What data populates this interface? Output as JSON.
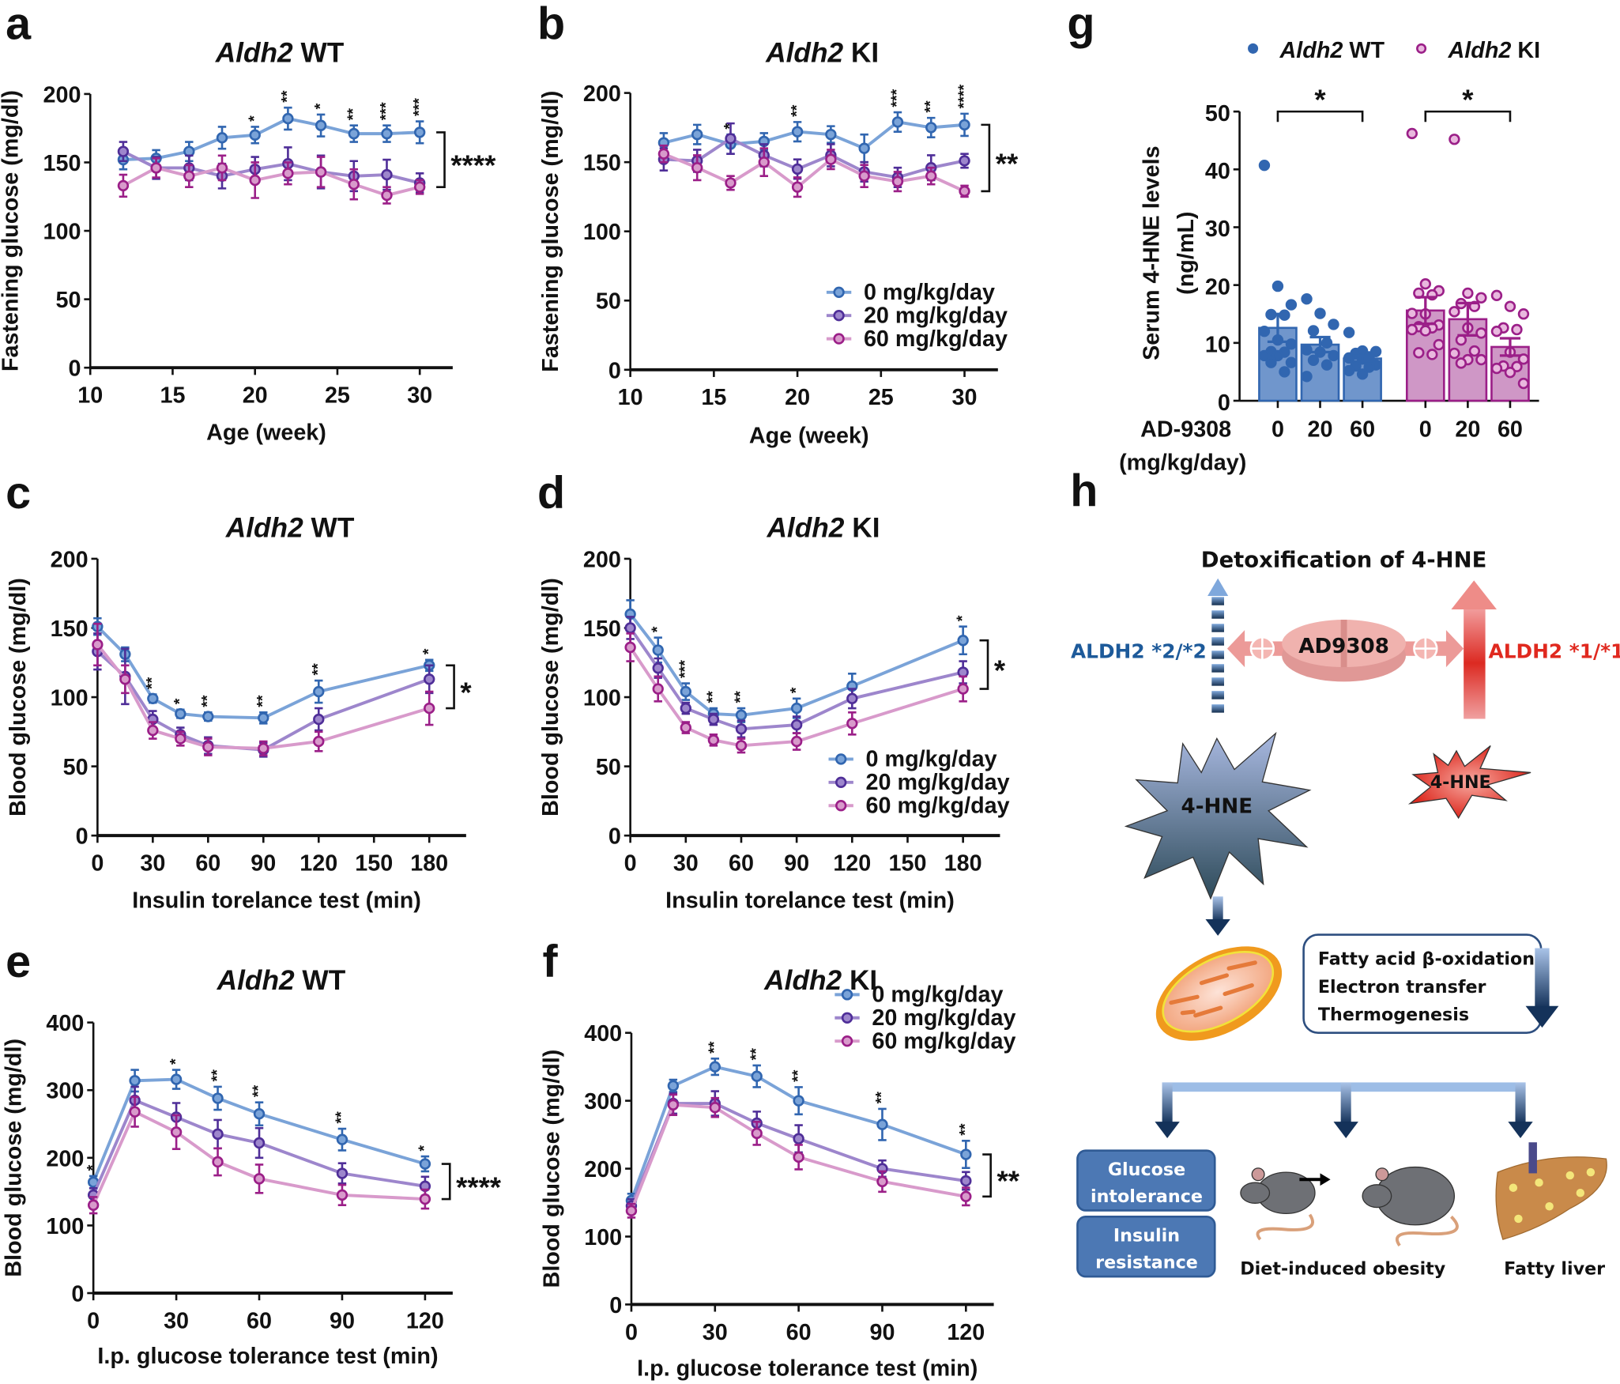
{
  "colors": {
    "dose0": "#3166b0",
    "dose0_line": "#7aa3d8",
    "dose20": "#4f2e98",
    "dose20_line": "#9d86cc",
    "dose60": "#9b1f88",
    "dose60_line": "#d89acb",
    "wt_bar": "#7096cc",
    "ki_bar": "#cf97c6"
  },
  "chart_data": [
    {
      "panel": "a",
      "type": "line",
      "title_gene": "Aldh2",
      "title_genotype": "WT",
      "ylabel": "Fastening glucose (mg/dl)",
      "xlabel": "Age (week)",
      "xlim": [
        10,
        32
      ],
      "ylim": [
        0,
        200
      ],
      "xticks": [
        10,
        15,
        20,
        25,
        30
      ],
      "yticks": [
        0,
        50,
        100,
        150,
        200
      ],
      "x": [
        12,
        14,
        16,
        18,
        20,
        22,
        24,
        26,
        28,
        30
      ],
      "series": [
        {
          "name": "0 mg/kg/day",
          "values": [
            152,
            153,
            158,
            168,
            170,
            182,
            177,
            171,
            171,
            172
          ],
          "sem": [
            7,
            6,
            7,
            8,
            6,
            8,
            8,
            6,
            6,
            8
          ]
        },
        {
          "name": "20 mg/kg/day",
          "values": [
            158,
            146,
            146,
            140,
            145,
            149,
            143,
            140,
            141,
            135
          ],
          "sem": [
            7,
            8,
            9,
            9,
            9,
            12,
            12,
            11,
            11,
            7
          ]
        },
        {
          "name": "60 mg/kg/day",
          "values": [
            133,
            146,
            140,
            146,
            137,
            142,
            143,
            134,
            126,
            132
          ],
          "sem": [
            8,
            7,
            8,
            9,
            13,
            8,
            11,
            11,
            6,
            5
          ]
        }
      ],
      "stars": [
        "",
        "",
        "",
        "",
        "*",
        "**",
        "*",
        "**",
        "***",
        "***"
      ],
      "bracket": "****",
      "legend": false
    },
    {
      "panel": "b",
      "type": "line",
      "title_gene": "Aldh2",
      "title_genotype": "KI",
      "ylabel": "Fastening glucose (mg/dl)",
      "xlabel": "Age (week)",
      "xlim": [
        10,
        32
      ],
      "ylim": [
        0,
        200
      ],
      "xticks": [
        10,
        15,
        20,
        25,
        30
      ],
      "yticks": [
        0,
        50,
        100,
        150,
        200
      ],
      "x": [
        12,
        14,
        16,
        18,
        20,
        22,
        24,
        26,
        28,
        30
      ],
      "series": [
        {
          "name": "0 mg/kg/day",
          "values": [
            164,
            170,
            163,
            165,
            172,
            170,
            160,
            179,
            175,
            177
          ],
          "sem": [
            7,
            7,
            7,
            6,
            7,
            6,
            10,
            7,
            7,
            8
          ]
        },
        {
          "name": "20 mg/kg/day",
          "values": [
            152,
            151,
            167,
            155,
            145,
            155,
            143,
            139,
            146,
            151
          ],
          "sem": [
            8,
            8,
            11,
            8,
            7,
            8,
            7,
            7,
            9,
            5
          ]
        },
        {
          "name": "60 mg/kg/day",
          "values": [
            156,
            146,
            135,
            150,
            132,
            152,
            140,
            136,
            140,
            129
          ],
          "sem": [
            6,
            9,
            5,
            10,
            7,
            7,
            8,
            7,
            6,
            4
          ]
        }
      ],
      "stars": [
        "",
        "",
        "*",
        "",
        "**",
        "",
        "",
        "***",
        "**",
        "****"
      ],
      "bracket": "**",
      "legend": true
    },
    {
      "panel": "c",
      "type": "line",
      "title_gene": "Aldh2",
      "title_genotype": "WT",
      "ylabel": "Blood glucose (mg/dl)",
      "xlabel": "Insulin torelance test (min)",
      "xlim": [
        0,
        200
      ],
      "ylim": [
        0,
        200
      ],
      "xticks": [
        0,
        30,
        60,
        90,
        120,
        150,
        180
      ],
      "yticks": [
        0,
        50,
        100,
        150,
        200
      ],
      "x": [
        0,
        15,
        30,
        45,
        60,
        90,
        120,
        180
      ],
      "series": [
        {
          "name": "0 mg/kg/day",
          "values": [
            151,
            131,
            99,
            88,
            86,
            85,
            104,
            123
          ],
          "sem": [
            6,
            5,
            3,
            3,
            3,
            4,
            8,
            4
          ]
        },
        {
          "name": "20 mg/kg/day",
          "values": [
            133,
            115,
            84,
            73,
            65,
            62,
            84,
            113
          ],
          "sem": [
            13,
            20,
            6,
            5,
            6,
            5,
            8,
            10
          ]
        },
        {
          "name": "60 mg/kg/day",
          "values": [
            138,
            113,
            76,
            70,
            64,
            63,
            68,
            92
          ],
          "sem": [
            15,
            10,
            6,
            5,
            6,
            5,
            7,
            12
          ]
        }
      ],
      "stars": [
        "",
        "",
        "**",
        "*",
        "**",
        "**",
        "**",
        "*"
      ],
      "bracket": "*",
      "legend": false
    },
    {
      "panel": "d",
      "type": "line",
      "title_gene": "Aldh2",
      "title_genotype": "KI",
      "ylabel": "Blood glucose (mg/dl)",
      "xlabel": "Insulin torelance test (min)",
      "xlim": [
        0,
        200
      ],
      "ylim": [
        0,
        200
      ],
      "xticks": [
        0,
        30,
        60,
        90,
        120,
        150,
        180
      ],
      "yticks": [
        0,
        50,
        100,
        150,
        200
      ],
      "x": [
        0,
        15,
        30,
        45,
        60,
        90,
        120,
        180
      ],
      "series": [
        {
          "name": "0 mg/kg/day",
          "values": [
            160,
            134,
            104,
            88,
            87,
            92,
            108,
            141
          ],
          "sem": [
            10,
            9,
            6,
            4,
            5,
            7,
            9,
            10
          ]
        },
        {
          "name": "20 mg/kg/day",
          "values": [
            150,
            121,
            92,
            84,
            77,
            80,
            99,
            118
          ],
          "sem": [
            8,
            7,
            4,
            4,
            6,
            6,
            7,
            8
          ]
        },
        {
          "name": "60 mg/kg/day",
          "values": [
            136,
            106,
            78,
            69,
            65,
            68,
            81,
            106
          ],
          "sem": [
            10,
            9,
            4,
            4,
            5,
            6,
            8,
            9
          ]
        }
      ],
      "stars": [
        "",
        "*",
        "***",
        "**",
        "**",
        "*",
        "",
        "*"
      ],
      "bracket": "*",
      "legend": true
    },
    {
      "panel": "e",
      "type": "line",
      "title_gene": "Aldh2",
      "title_genotype": "WT",
      "ylabel": "Blood glucose (mg/dl)",
      "xlabel": "I.p. glucose tolerance test (min)",
      "xlim": [
        0,
        130
      ],
      "ylim": [
        0,
        400
      ],
      "xticks": [
        0,
        30,
        60,
        90,
        120
      ],
      "yticks": [
        0,
        100,
        200,
        300,
        400
      ],
      "x": [
        0,
        15,
        30,
        45,
        60,
        90,
        120
      ],
      "series": [
        {
          "name": "0 mg/kg/day",
          "values": [
            164,
            314,
            316,
            288,
            265,
            227,
            191
          ],
          "sem": [
            9,
            16,
            14,
            17,
            17,
            16,
            11
          ]
        },
        {
          "name": "20 mg/kg/day",
          "values": [
            145,
            285,
            260,
            235,
            222,
            177,
            158
          ],
          "sem": [
            10,
            20,
            21,
            21,
            22,
            15,
            14
          ]
        },
        {
          "name": "60 mg/kg/day",
          "values": [
            130,
            268,
            238,
            194,
            169,
            145,
            139
          ],
          "sem": [
            12,
            22,
            25,
            20,
            21,
            15,
            14
          ]
        }
      ],
      "stars": [
        "*",
        "",
        "*",
        "**",
        "**",
        "**",
        "*"
      ],
      "bracket": "****",
      "legend": false
    },
    {
      "panel": "f",
      "type": "line",
      "title_gene": "Aldh2",
      "title_genotype": "KI",
      "ylabel": "Blood glucose (mg/dl)",
      "xlabel": "I.p. glucose tolerance test (min)",
      "xlim": [
        0,
        130
      ],
      "ylim": [
        0,
        400
      ],
      "xticks": [
        0,
        30,
        60,
        90,
        120
      ],
      "yticks": [
        0,
        100,
        200,
        300,
        400
      ],
      "x": [
        0,
        15,
        30,
        45,
        60,
        90,
        120
      ],
      "series": [
        {
          "name": "0 mg/kg/day",
          "values": [
            153,
            322,
            350,
            336,
            300,
            265,
            221
          ],
          "sem": [
            10,
            9,
            12,
            16,
            20,
            23,
            20
          ]
        },
        {
          "name": "20 mg/kg/day",
          "values": [
            145,
            296,
            296,
            267,
            244,
            200,
            182
          ],
          "sem": [
            10,
            15,
            18,
            17,
            20,
            12,
            13
          ]
        },
        {
          "name": "60 mg/kg/day",
          "values": [
            138,
            294,
            290,
            252,
            217,
            181,
            159
          ],
          "sem": [
            10,
            15,
            14,
            17,
            18,
            15,
            13
          ]
        }
      ],
      "stars": [
        "",
        "",
        "**",
        "**",
        "**",
        "**",
        "**"
      ],
      "bracket": "**",
      "legend": true
    },
    {
      "panel": "g",
      "type": "bar",
      "ylabel_line1": "Serum 4-HNE levels",
      "ylabel_line2": "(ng/mL)",
      "xlabel_line1": "AD-9308",
      "xlabel_line2": "(mg/kg/day)",
      "ylim": [
        0,
        50
      ],
      "yticks": [
        0,
        10,
        20,
        30,
        40,
        50
      ],
      "legend": [
        {
          "gene": "Aldh2",
          "genotype": "WT"
        },
        {
          "gene": "Aldh2",
          "genotype": "KI"
        }
      ],
      "groups": [
        {
          "name": "Aldh2 WT",
          "categories": [
            "0",
            "20",
            "60"
          ],
          "means": [
            12.6,
            9.7,
            7.3
          ],
          "sem": [
            2.4,
            1.3,
            0.5
          ],
          "points": [
            [
              40.7,
              19.8,
              16.6,
              14.9,
              14.8,
              12.0,
              10.5,
              9.8,
              8.5,
              8.4,
              7.8,
              7.8,
              6.6,
              6.6,
              5.0
            ],
            [
              17.6,
              15.1,
              13.2,
              12.1,
              10.0,
              8.8,
              8.4,
              7.8,
              7.0,
              6.2,
              4.2
            ],
            [
              11.8,
              8.6,
              8.5,
              8.2,
              7.6,
              7.4,
              7.2,
              6.2,
              6.0,
              5.8,
              5.2,
              4.6
            ]
          ],
          "comparison": "*"
        },
        {
          "name": "Aldh2 KI",
          "categories": [
            "0",
            "20",
            "60"
          ],
          "means": [
            15.6,
            14.1,
            9.3
          ],
          "sem": [
            2.3,
            2.8,
            1.5
          ],
          "points": [
            [
              46.2,
              20.2,
              19.0,
              18.6,
              18.3,
              15.1,
              15.0,
              13.1,
              12.8,
              12.6,
              12.3,
              12.1,
              9.7,
              8.3,
              8.0
            ],
            [
              45.2,
              18.6,
              17.8,
              16.8,
              16.3,
              15.4,
              12.6,
              11.7,
              10.5,
              8.6,
              8.2,
              7.1,
              7.1,
              6.5
            ],
            [
              18.2,
              16.3,
              15.0,
              12.6,
              12.3,
              12.0,
              8.4,
              7.2,
              6.0,
              5.9,
              5.6,
              4.9,
              3.0
            ]
          ],
          "comparison": "*"
        }
      ]
    }
  ],
  "diagram": {
    "panel": "h",
    "title": "Detoxification of 4-HNE",
    "left_genotype": "ALDH2 *2/*2",
    "right_genotype": "ALDH2 *1/*1",
    "drug": "AD9308",
    "toxin_large": "4-HNE",
    "toxin_small": "4-HNE",
    "processes": [
      "Fatty acid β-oxidation",
      "Electron transfer",
      "Thermogenesis"
    ],
    "outcome_box1": [
      "Glucose",
      "intolerance"
    ],
    "outcome_box2": [
      "Insulin",
      "resistance"
    ],
    "outcome_obesity": "Diet-induced obesity",
    "outcome_liver": "Fatty liver",
    "left_color": "#1d5a9a",
    "right_color": "#e0291f"
  }
}
